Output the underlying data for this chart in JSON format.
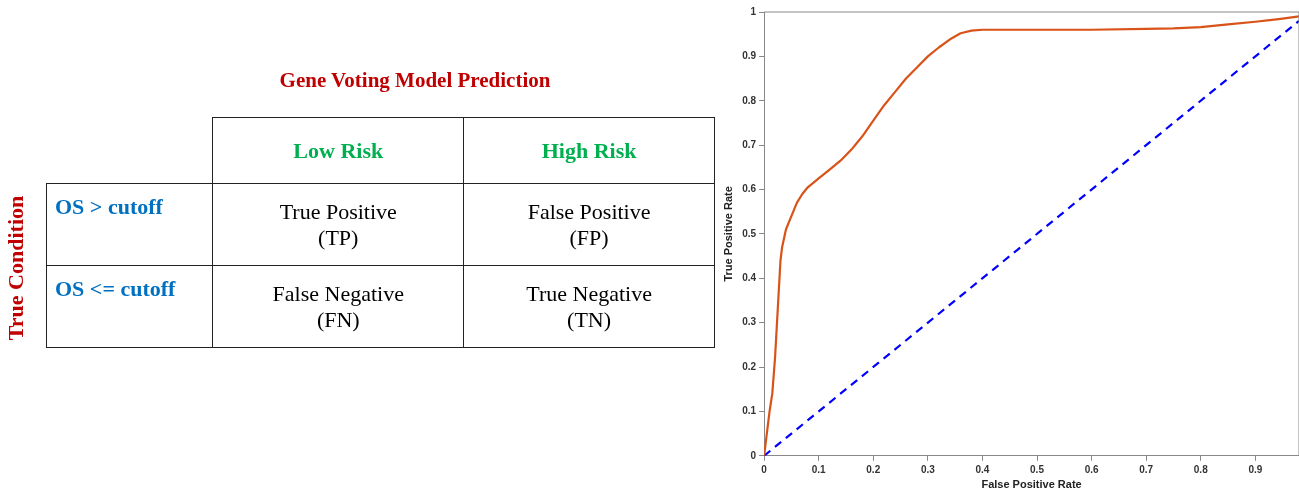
{
  "chart_data": [
    {
      "type": "other",
      "title": "Gene Voting Model Prediction",
      "ylabel": "True Condition",
      "categories": [
        "Low Risk",
        "High Risk"
      ],
      "y_categories": [
        "OS > cutoff",
        "OS <= cutoff"
      ],
      "cell_labels": [
        [
          "True Positive\n(TP)",
          "False Positive\n(FP)"
        ],
        [
          "False Negative\n(FN)",
          "True Negative\n(TN)"
        ]
      ]
    },
    {
      "type": "line",
      "xlabel": "False Positive Rate",
      "ylabel": "True Positive Rate",
      "xlim": [
        0,
        0.98
      ],
      "ylim": [
        0,
        1
      ],
      "xticks": [
        0,
        0.1,
        0.2,
        0.3,
        0.4,
        0.5,
        0.6,
        0.7,
        0.8,
        0.9
      ],
      "yticks": [
        0,
        0.1,
        0.2,
        0.3,
        0.4,
        0.5,
        0.6,
        0.7,
        0.8,
        0.9,
        1
      ],
      "grid": false,
      "legend": false,
      "marker": "none",
      "series": [
        {
          "color": "#d95319",
          "line_style": "solid",
          "x": [
            0,
            0.005,
            0.01,
            0.015,
            0.02,
            0.025,
            0.03,
            0.033,
            0.04,
            0.05,
            0.06,
            0.07,
            0.08,
            0.1,
            0.12,
            0.14,
            0.16,
            0.18,
            0.2,
            0.22,
            0.24,
            0.26,
            0.28,
            0.3,
            0.32,
            0.34,
            0.36,
            0.38,
            0.4,
            0.5,
            0.6,
            0.7,
            0.75,
            0.8,
            0.85,
            0.9,
            0.95,
            0.98
          ],
          "values": [
            0,
            0.05,
            0.1,
            0.14,
            0.22,
            0.33,
            0.44,
            0.47,
            0.51,
            0.54,
            0.57,
            0.59,
            0.605,
            0.625,
            0.645,
            0.665,
            0.69,
            0.72,
            0.755,
            0.79,
            0.82,
            0.85,
            0.875,
            0.9,
            0.92,
            0.938,
            0.952,
            0.958,
            0.96,
            0.96,
            0.96,
            0.962,
            0.963,
            0.966,
            0.972,
            0.978,
            0.985,
            0.99
          ]
        },
        {
          "color": "#0000ff",
          "line_style": "dashed",
          "x": [
            0,
            0.98
          ],
          "values": [
            0,
            0.98
          ]
        }
      ]
    }
  ]
}
